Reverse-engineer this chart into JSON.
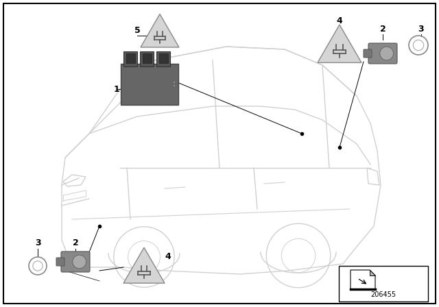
{
  "background_color": "#ffffff",
  "fig_width": 6.4,
  "fig_height": 4.48,
  "dpi": 100,
  "part_number": "206455",
  "car_color": "#d0d0d0",
  "car_lw": 1.0,
  "label_color": "#000000",
  "label_fontsize": 9,
  "line_color": "#000000",
  "ecu_color": "#666666",
  "ecu_edge": "#444444",
  "triangle_fill": "#d0d0d0",
  "triangle_edge": "#888888",
  "triangle_lw": 1.0,
  "sensor_body_color": "#888888",
  "sensor_face_color": "#aaaaaa",
  "gasket_color": "#cccccc"
}
